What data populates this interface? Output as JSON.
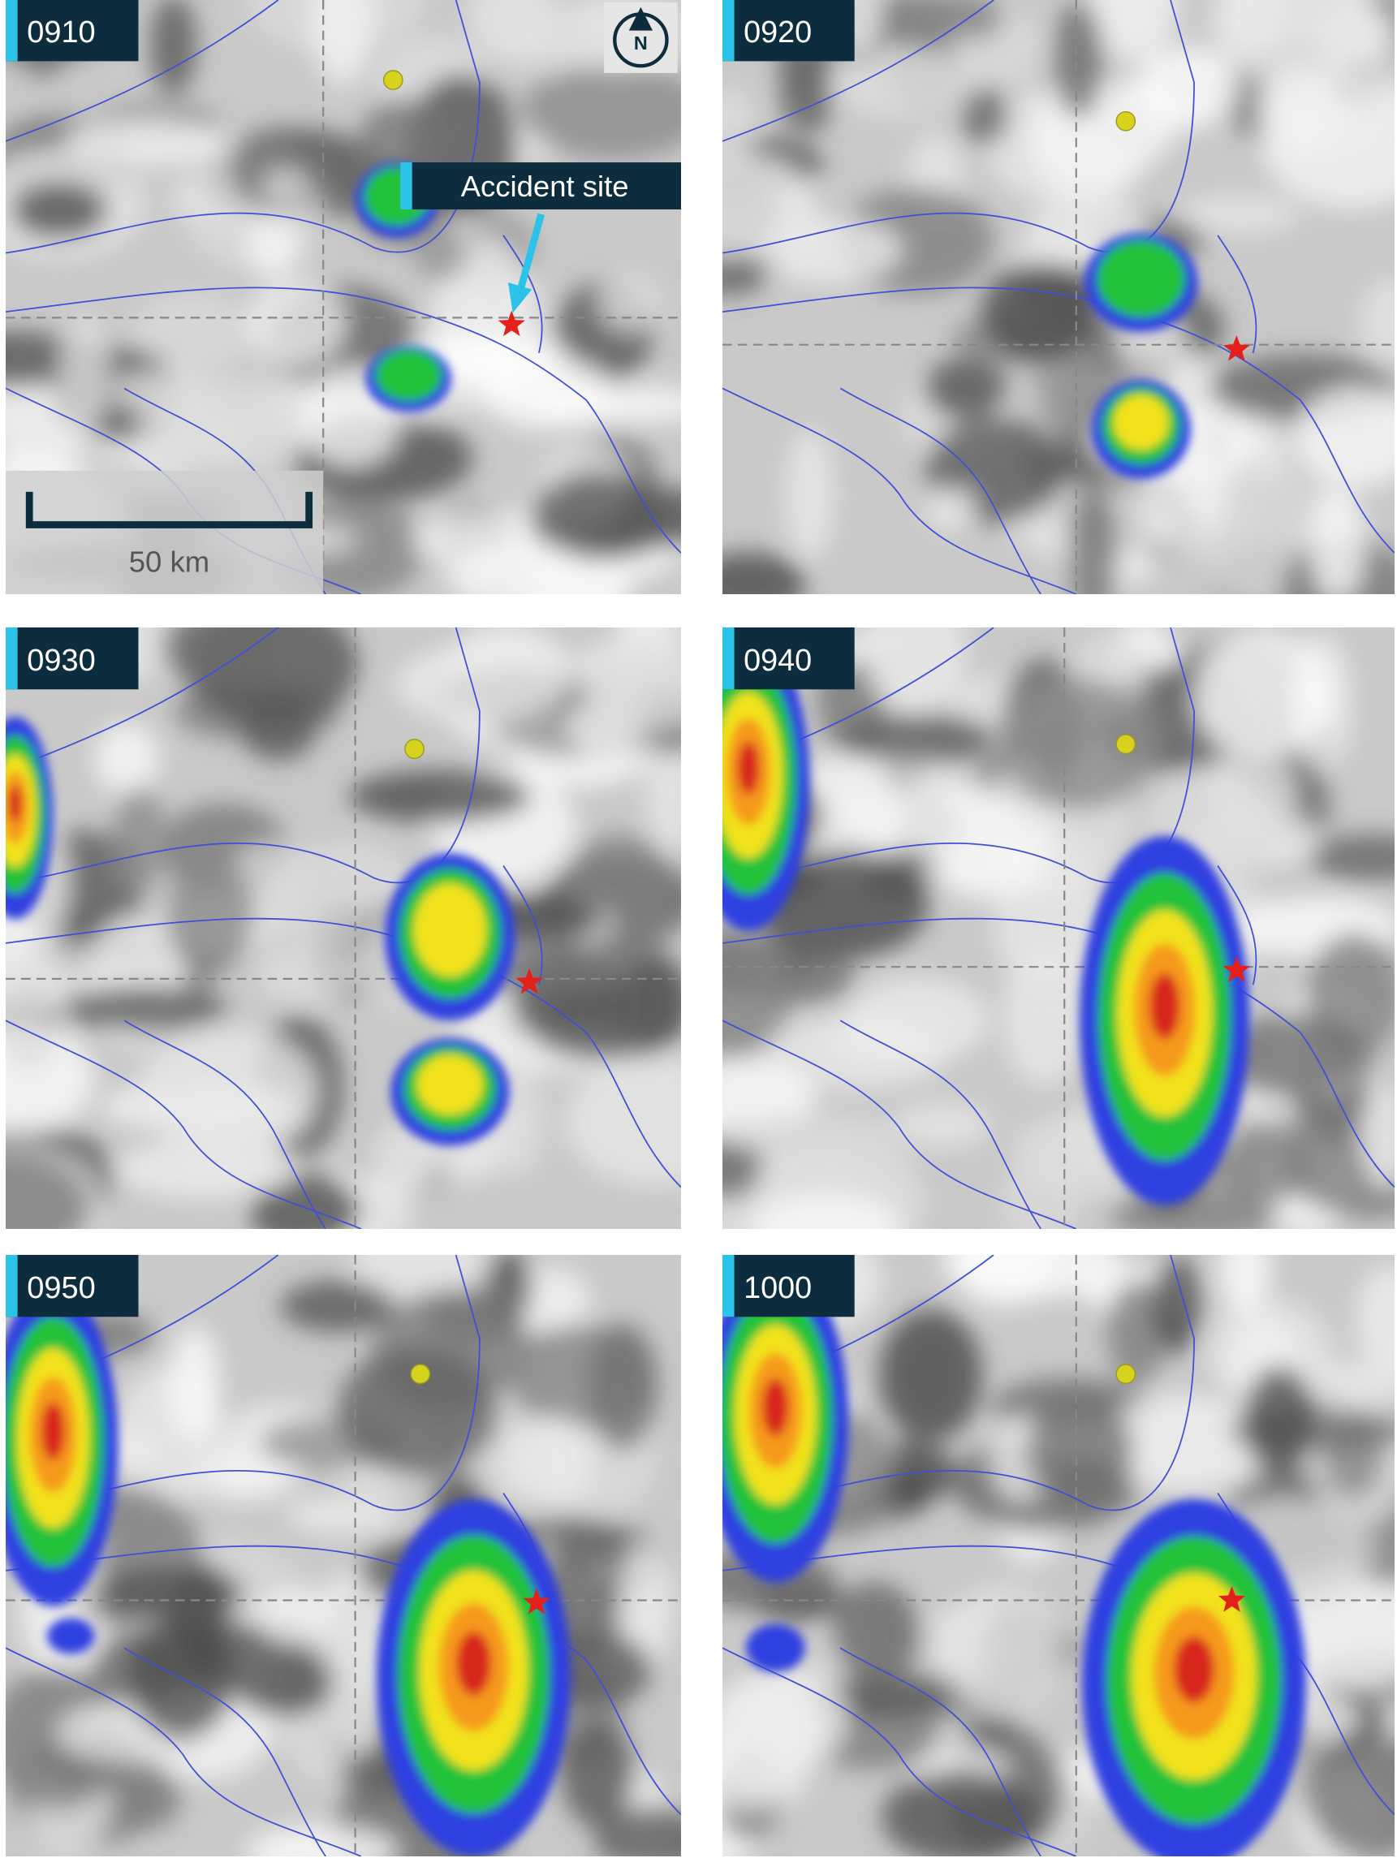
{
  "panels": [
    {
      "time": "0910"
    },
    {
      "time": "0920"
    },
    {
      "time": "0930"
    },
    {
      "time": "0940"
    },
    {
      "time": "0950"
    },
    {
      "time": "1000"
    }
  ],
  "callout": {
    "label": "Accident site"
  },
  "scale_bar": {
    "label": "50 km"
  },
  "compass": {
    "label": "N"
  }
}
